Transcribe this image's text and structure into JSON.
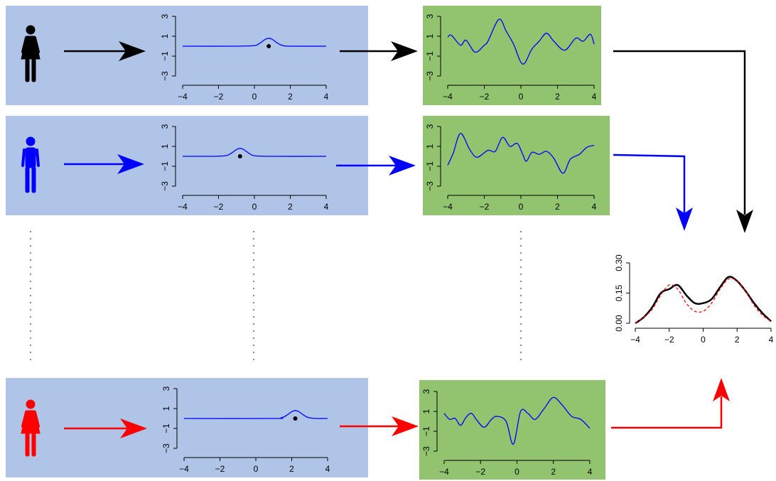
{
  "rows": [
    {
      "line_color": "#000000",
      "kernel_plot": {
        "xlim": [
          -4,
          4
        ],
        "ylim": [
          -3.5,
          3.5
        ],
        "xticks": [
          {
            "value": -4,
            "label": "−4"
          },
          {
            "value": -2,
            "label": "−2"
          },
          0,
          2,
          4
        ],
        "yticks": [
          {
            "value": -3,
            "label": "−3"
          },
          {
            "value": -1,
            "label": "−1"
          },
          1,
          3
        ],
        "color": "#0000ff",
        "x": [
          -4,
          -1,
          0,
          0.2,
          0.4,
          0.6,
          0.8,
          1,
          1.2,
          1.4,
          1.6,
          2,
          4
        ],
        "values": [
          0,
          0,
          0.06,
          0.19,
          0.42,
          0.68,
          0.8,
          0.68,
          0.42,
          0.19,
          0.06,
          0,
          0
        ],
        "point": {
          "x": 0.8,
          "y": 0
        }
      },
      "sample_plot": {
        "xlim": [
          -4,
          4
        ],
        "ylim": [
          -3.5,
          3.5
        ],
        "xticks": [
          {
            "value": -4,
            "label": "−4"
          },
          {
            "value": -2,
            "label": "−2"
          },
          0,
          2,
          4
        ],
        "yticks": [
          {
            "value": -3,
            "label": "−3"
          },
          {
            "value": -1,
            "label": "−1"
          },
          1,
          3
        ],
        "color": "#0000ff",
        "x": [
          -4,
          -3.8,
          -3.3,
          -3.0,
          -2.5,
          -2.0,
          -1.8,
          -1.2,
          -0.8,
          -0.4,
          0.1,
          0.6,
          1.0,
          1.4,
          1.8,
          2.4,
          3.0,
          3.4,
          3.8,
          4
        ],
        "values": [
          0.9,
          1.1,
          0.1,
          0.6,
          -0.6,
          0.1,
          0.5,
          2.7,
          1.5,
          0.2,
          -1.8,
          -0.3,
          0.5,
          1.3,
          0.5,
          -0.4,
          0.8,
          0.5,
          1.2,
          0.2
        ]
      }
    },
    {
      "line_color": "#0000ff",
      "kernel_plot": {
        "xlim": [
          -4,
          4
        ],
        "ylim": [
          -3.5,
          3.5
        ],
        "xticks": [
          {
            "value": -4,
            "label": "−4"
          },
          {
            "value": -2,
            "label": "−2"
          },
          0,
          2,
          4
        ],
        "yticks": [
          {
            "value": -3,
            "label": "−3"
          },
          {
            "value": -1,
            "label": "−1"
          },
          1,
          3
        ],
        "color": "#0000ff",
        "x": [
          -4,
          -2.4,
          -2,
          -1.6,
          -1.4,
          -1.2,
          -1,
          -0.8,
          -0.6,
          -0.4,
          -0.2,
          0,
          0.8,
          4
        ],
        "values": [
          0,
          0,
          0.01,
          0.06,
          0.19,
          0.42,
          0.68,
          0.8,
          0.68,
          0.42,
          0.19,
          0.06,
          0,
          0
        ],
        "point": {
          "x": -0.8,
          "y": 0
        }
      },
      "sample_plot": {
        "xlim": [
          -4,
          4
        ],
        "ylim": [
          -3.5,
          3.5
        ],
        "xticks": [
          {
            "value": -4,
            "label": "−4"
          },
          {
            "value": -2,
            "label": "−2"
          },
          0,
          2,
          4
        ],
        "yticks": [
          {
            "value": -3,
            "label": "−3"
          },
          {
            "value": -1,
            "label": "−1"
          },
          1,
          3
        ],
        "color": "#0000ff",
        "x": [
          -4,
          -3.7,
          -3.3,
          -2.8,
          -2.4,
          -1.8,
          -1.4,
          -1.0,
          -0.6,
          -0.2,
          0.1,
          0.3,
          0.6,
          1.0,
          1.4,
          1.8,
          2.3,
          2.7,
          3.2,
          3.6,
          4
        ],
        "values": [
          -0.9,
          0.3,
          2.3,
          0.7,
          -0.1,
          0.6,
          0.5,
          1.9,
          1.0,
          1.3,
          0.2,
          -0.5,
          0.4,
          0.2,
          0.5,
          -0.2,
          -1.7,
          -0.3,
          0.2,
          0.9,
          1.1
        ]
      }
    },
    {
      "line_color": "#ff0000",
      "kernel_plot": {
        "xlim": [
          -4,
          4
        ],
        "ylim": [
          -3.5,
          3.5
        ],
        "xticks": [
          {
            "value": -4,
            "label": "−4"
          },
          {
            "value": -2,
            "label": "−2"
          },
          0,
          2,
          4
        ],
        "yticks": [
          {
            "value": -3,
            "label": "−3"
          },
          {
            "value": -1,
            "label": "−1"
          },
          1,
          3
        ],
        "color": "#0000ff",
        "x": [
          -4,
          1,
          1.4,
          1.6,
          1.8,
          2,
          2.2,
          2.4,
          2.6,
          2.8,
          3,
          3.4,
          4
        ],
        "values": [
          0,
          0,
          0.06,
          0.19,
          0.42,
          0.68,
          0.8,
          0.68,
          0.42,
          0.19,
          0.06,
          0,
          0
        ],
        "point": {
          "x": 2.2,
          "y": 0
        }
      },
      "sample_plot": {
        "xlim": [
          -4,
          4
        ],
        "ylim": [
          -3.5,
          3.5
        ],
        "xticks": [
          {
            "value": -4,
            "label": "−4"
          },
          {
            "value": -2,
            "label": "−2"
          },
          0,
          2,
          4
        ],
        "yticks": [
          {
            "value": -3,
            "label": "−3"
          },
          {
            "value": -1,
            "label": "−1"
          },
          1,
          3
        ],
        "color": "#0000ff",
        "x": [
          -4,
          -3.7,
          -3.4,
          -3.1,
          -2.8,
          -2.5,
          -2.2,
          -1.8,
          -1.4,
          -1.1,
          -0.6,
          -0.2,
          0.2,
          0.6,
          1.0,
          1.5,
          2.0,
          2.5,
          3.0,
          3.5,
          4
        ],
        "values": [
          0.8,
          0.2,
          0.3,
          -0.4,
          0.4,
          0.8,
          0.1,
          -0.6,
          0.2,
          0.5,
          0.0,
          -2.3,
          1.0,
          0.8,
          0.2,
          1.3,
          2.4,
          1.6,
          0.5,
          0.2,
          -0.7
        ]
      }
    }
  ],
  "density_plot": {
    "xlim": [
      -4,
      4
    ],
    "ylim": [
      0,
      0.3
    ],
    "xticks": [
      {
        "value": -4,
        "label": "−4"
      },
      {
        "value": -2,
        "label": "−2"
      },
      0,
      2,
      4
    ],
    "yticks": [
      {
        "value": 0,
        "label": "0.00"
      },
      {
        "value": 0.15,
        "label": "0.15"
      },
      {
        "value": 0.3,
        "label": "0.30"
      }
    ],
    "x": [
      -4,
      -3.5,
      -3,
      -2.5,
      -2,
      -1.5,
      -1,
      -0.5,
      0,
      0.5,
      1,
      1.5,
      2,
      2.5,
      3,
      3.5,
      4
    ],
    "series": [
      {
        "color": "#000000",
        "style": "solid",
        "values": [
          0,
          0.03,
          0.08,
          0.15,
          0.17,
          0.19,
          0.14,
          0.1,
          0.1,
          0.12,
          0.18,
          0.23,
          0.21,
          0.16,
          0.1,
          0.05,
          0.01
        ]
      },
      {
        "color": "#ff0000",
        "style": "dashed",
        "values": [
          0,
          0.03,
          0.07,
          0.14,
          0.19,
          0.17,
          0.1,
          0.06,
          0.06,
          0.1,
          0.17,
          0.22,
          0.21,
          0.16,
          0.09,
          0.04,
          0.01
        ]
      }
    ]
  }
}
